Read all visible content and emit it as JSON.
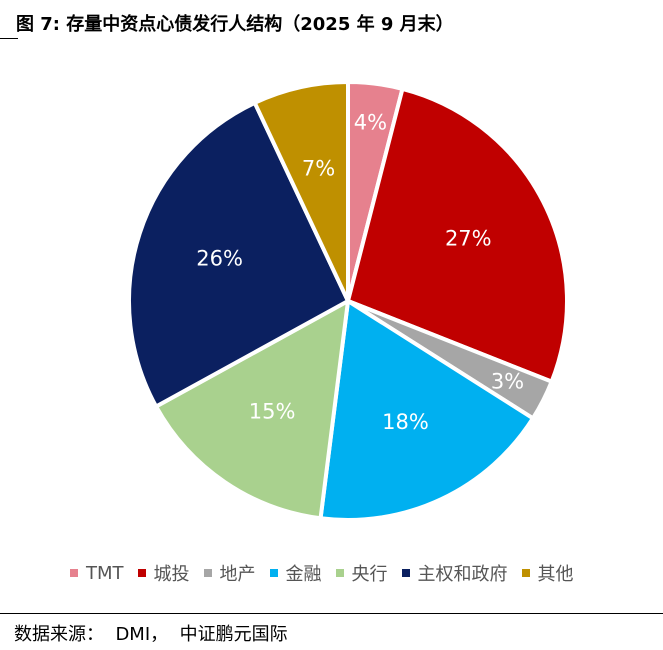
{
  "title": "图 7: 存量中资点心债发行人结构（2025 年 9 月末）",
  "source": "数据来源：  DMI，  中证鹏元国际",
  "chart_data": {
    "type": "pie",
    "title": "图 7: 存量中资点心债发行人结构（2025 年 9 月末）",
    "slices": [
      {
        "name": "TMT",
        "value": 4,
        "label": "4%",
        "color": "#E6818E"
      },
      {
        "name": "城投",
        "value": 27,
        "label": "27%",
        "color": "#C00000"
      },
      {
        "name": "地产",
        "value": 3,
        "label": "3%",
        "color": "#A6A6A6"
      },
      {
        "name": "金融",
        "value": 18,
        "label": "18%",
        "color": "#00B0F0"
      },
      {
        "name": "央行",
        "value": 15,
        "label": "15%",
        "color": "#A9D18E"
      },
      {
        "name": "主权和政府",
        "value": 26,
        "label": "26%",
        "color": "#0B2060"
      },
      {
        "name": "其他",
        "value": 7,
        "label": "7%",
        "color": "#BF9000"
      }
    ],
    "legend_position": "bottom"
  }
}
